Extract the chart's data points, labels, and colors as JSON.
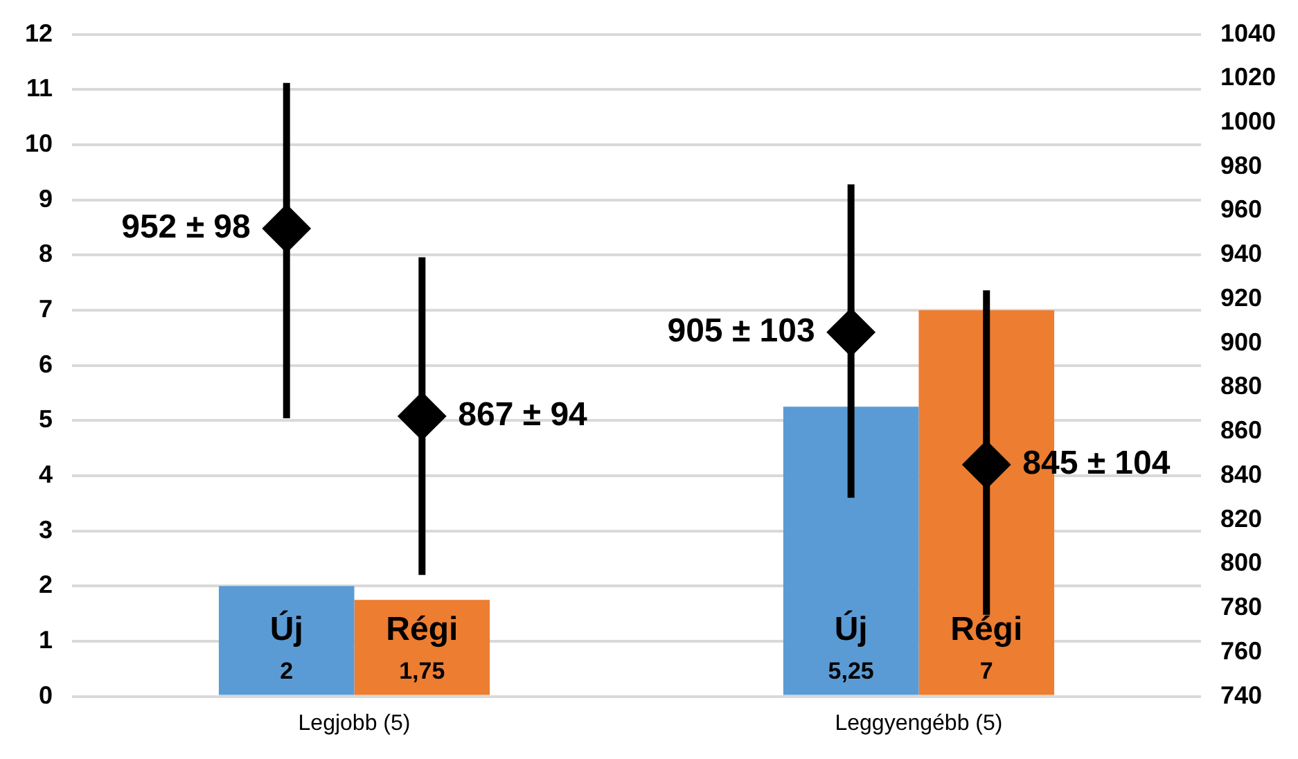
{
  "chart_data": {
    "type": "bar",
    "categories": [
      "Legjobb (5)",
      "Leggyengébb (5)"
    ],
    "marker": "diamond",
    "grid": "y",
    "series": [
      {
        "name": "Új",
        "color": "#5b9bd5",
        "values": [
          2,
          5.25
        ],
        "value_labels": [
          "2",
          "5,25"
        ]
      },
      {
        "name": "Régi",
        "color": "#ed7d31",
        "values": [
          1.75,
          7
        ],
        "value_labels": [
          "1,75",
          "7"
        ]
      },
      {
        "type": "scatter",
        "axis": "y2",
        "color": "#000000",
        "x": [
          "Legjobb (5)",
          "Leggyengébb (5)"
        ],
        "values": [
          952,
          905
        ],
        "errors": [
          [
            866,
            1018
          ],
          [
            830,
            972
          ]
        ],
        "value_labels": [
          "952 ± 98",
          "905 ± 103"
        ]
      },
      {
        "type": "scatter",
        "axis": "y2",
        "color": "#000000",
        "x": [
          "Legjobb (5)",
          "Leggyengébb (5)"
        ],
        "values": [
          867,
          845
        ],
        "errors": [
          [
            795,
            939
          ],
          [
            777,
            924
          ]
        ],
        "value_labels": [
          "867 ± 94",
          "845 ± 104"
        ]
      }
    ],
    "ylim": [
      0,
      12
    ],
    "yticks": [
      0,
      1,
      2,
      3,
      4,
      5,
      6,
      7,
      8,
      9,
      10,
      11,
      12
    ],
    "y2lim": [
      740,
      1040
    ],
    "y2ticks": [
      740,
      760,
      780,
      800,
      820,
      840,
      860,
      880,
      900,
      920,
      940,
      960,
      980,
      1000,
      1020,
      1040
    ]
  }
}
